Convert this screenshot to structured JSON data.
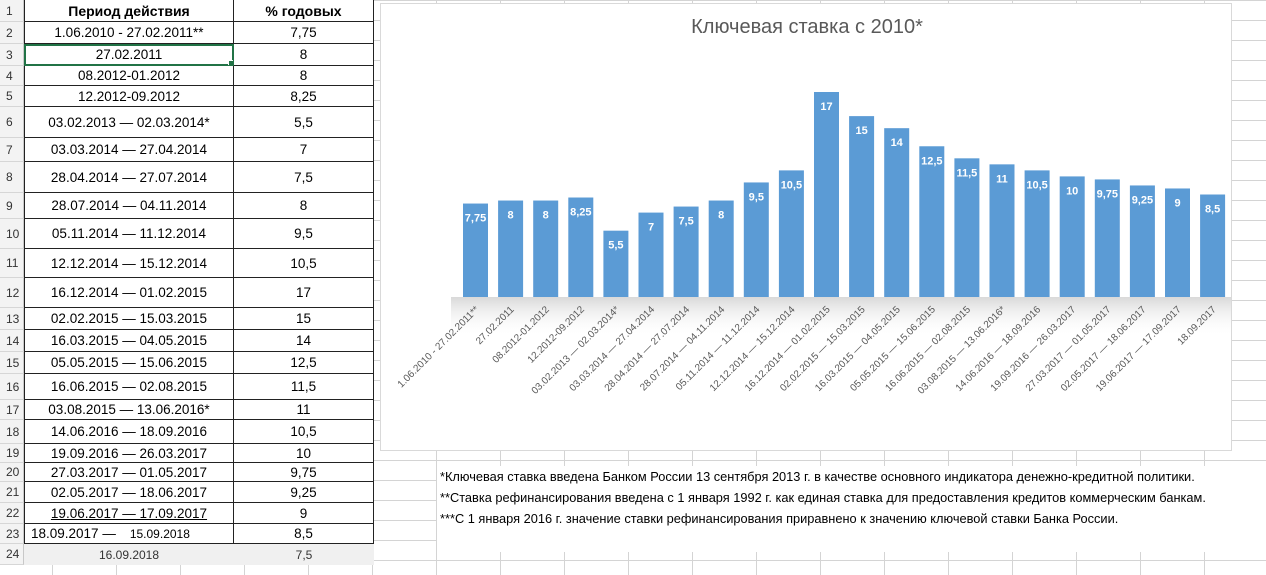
{
  "table": {
    "header": {
      "row": "1",
      "period": "Период действия",
      "rate": "% годовых"
    },
    "rows": [
      {
        "row": "2",
        "period": "1.06.2010 - 27.02.2011**",
        "rate": "7,75"
      },
      {
        "row": "3",
        "period": "27.02.2011",
        "rate": "8"
      },
      {
        "row": "4",
        "period": "08.2012-01.2012",
        "rate": "8"
      },
      {
        "row": "5",
        "period": "12.2012-09.2012",
        "rate": "8,25"
      },
      {
        "row": "6",
        "period": "03.02.2013 — 02.03.2014*",
        "rate": "5,5"
      },
      {
        "row": "7",
        "period": "03.03.2014 — 27.04.2014",
        "rate": "7"
      },
      {
        "row": "8",
        "period": "28.04.2014 — 27.07.2014",
        "rate": "7,5"
      },
      {
        "row": "9",
        "period": "28.07.2014 — 04.11.2014",
        "rate": "8"
      },
      {
        "row": "10",
        "period": "05.11.2014 — 11.12.2014",
        "rate": "9,5"
      },
      {
        "row": "11",
        "period": "12.12.2014 — 15.12.2014",
        "rate": "10,5"
      },
      {
        "row": "12",
        "period": "16.12.2014 — 01.02.2015",
        "rate": "17"
      },
      {
        "row": "13",
        "period": "02.02.2015 — 15.03.2015",
        "rate": "15"
      },
      {
        "row": "14",
        "period": "16.03.2015 — 04.05.2015",
        "rate": "14"
      },
      {
        "row": "15",
        "period": "05.05.2015 — 15.06.2015",
        "rate": "12,5"
      },
      {
        "row": "16",
        "period": "16.06.2015 — 02.08.2015",
        "rate": "11,5"
      },
      {
        "row": "17",
        "period": "03.08.2015 — 13.06.2016*",
        "rate": "11"
      },
      {
        "row": "18",
        "period": "14.06.2016 — 18.09.2016",
        "rate": "10,5"
      },
      {
        "row": "19",
        "period": "19.09.2016 — 26.03.2017",
        "rate": "10"
      },
      {
        "row": "20",
        "period": "27.03.2017 — 01.05.2017",
        "rate": "9,75"
      },
      {
        "row": "21",
        "period": "02.05.2017 — 18.06.2017",
        "rate": "9,25"
      },
      {
        "row": "22",
        "period": "19.06.2017 — 17.09.2017",
        "rate": "9"
      }
    ],
    "row23": {
      "row": "23",
      "period_a": "18.09.2017 —",
      "period_b": "15.09.2018",
      "rate": "8,5"
    },
    "row24": {
      "row": "24",
      "period": "16.09.2018",
      "rate": "7,5"
    }
  },
  "chart_data": {
    "type": "bar",
    "title": "Ключевая ставка с 2010*",
    "categories": [
      "1.06.2010 - 27.02.2011**",
      "27.02.2011",
      "08.2012-01.2012",
      "12.2012-09.2012",
      "03.02.2013 — 02.03.2014*",
      "03.03.2014 — 27.04.2014",
      "28.04.2014 — 27.07.2014",
      "28.07.2014 — 04.11.2014",
      "05.11.2014 — 11.12.2014",
      "12.12.2014 — 15.12.2014",
      "16.12.2014 — 01.02.2015",
      "02.02.2015 — 15.03.2015",
      "16.03.2015 — 04.05.2015",
      "05.05.2015 — 15.06.2015",
      "16.06.2015 — 02.08.2015",
      "03.08.2015 — 13.06.2016*",
      "14.06.2016 — 18.09.2016",
      "19.09.2016 — 26.03.2017",
      "27.03.2017 — 01.05.2017",
      "02.05.2017 — 18.06.2017",
      "19.06.2017 — 17.09.2017",
      "18.09.2017"
    ],
    "values": [
      7.75,
      8,
      8,
      8.25,
      5.5,
      7,
      7.5,
      8,
      9.5,
      10.5,
      17,
      15,
      14,
      12.5,
      11.5,
      11,
      10.5,
      10,
      9.75,
      9.25,
      9,
      8.5
    ],
    "value_labels": [
      "7,75",
      "8",
      "8",
      "8,25",
      "5,5",
      "7",
      "7,5",
      "8",
      "9,5",
      "10,5",
      "17",
      "15",
      "14",
      "12,5",
      "11,5",
      "11",
      "10,5",
      "10",
      "9,75",
      "9,25",
      "9",
      "8,5"
    ],
    "xlabel": "",
    "ylabel": "",
    "ylim": [
      0,
      17
    ],
    "grid": false,
    "legend": "none",
    "bar_color": "#5b9bd5"
  },
  "notes": [
    "*Ключевая ставка введена Банком России 13 сентября 2013 г. в качестве основного индикатора денежно-кредитной политики.",
    "**Ставка рефинансирования введена с 1 января 1992 г. как единая ставка для предоставления кредитов коммерческим банкам.",
    "***С 1 января 2016 г. значение ставки рефинансирования приравнено к значению ключевой ставки Банка России."
  ]
}
